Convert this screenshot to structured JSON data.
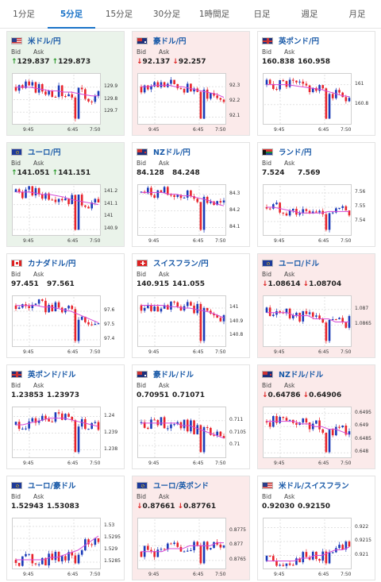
{
  "tabs": [
    {
      "label": "1分足",
      "active": false
    },
    {
      "label": "5分足",
      "active": true
    },
    {
      "label": "15分足",
      "active": false
    },
    {
      "label": "30分足",
      "active": false
    },
    {
      "label": "1時間足",
      "active": false
    },
    {
      "label": "日足",
      "active": false
    },
    {
      "label": "週足",
      "active": false
    },
    {
      "label": "月足",
      "active": false
    }
  ],
  "labels": {
    "bid": "Bid",
    "ask": "Ask"
  },
  "arrows": {
    "up": "↑",
    "down": "↓"
  },
  "colors": {
    "up_bg": "#eaf3ea",
    "down_bg": "#fbeaea",
    "up_arrow": "#2a9a2a",
    "down_arrow": "#d22222",
    "candle_up": "#1a3ab8",
    "candle_down": "#e8232b",
    "ma_line": "#d64ad6",
    "name": "#1a5aa8"
  },
  "pairs": [
    {
      "name": "米ドル/円",
      "trend": "up",
      "bid": "129.837",
      "ask": "129.873",
      "icon": "us-flag-icon",
      "yticks": [
        "129.9",
        "129.8",
        "129.7"
      ],
      "xticks": [
        "9:45",
        "6:45",
        "7:50"
      ],
      "chart_data": {
        "type": "candlestick",
        "ylim": [
          129.6,
          130.0
        ],
        "y_values": [
          129.9,
          129.8,
          129.7
        ],
        "ma": [
          129.9,
          129.9,
          129.9,
          129.89,
          129.88,
          129.87,
          129.87,
          129.86,
          129.86,
          129.85,
          129.84,
          129.83,
          129.83
        ]
      }
    },
    {
      "name": "豪ドル/円",
      "trend": "down",
      "bid": "92.137",
      "ask": "92.257",
      "icon": "au-flag-icon",
      "yticks": [
        "92.3",
        "92.2",
        "92.1"
      ],
      "xticks": [
        "9:45",
        "6:45",
        "7:50"
      ],
      "chart_data": {
        "type": "candlestick",
        "ylim": [
          92.05,
          92.38
        ],
        "y_values": [
          92.3,
          92.2,
          92.1
        ],
        "ma": [
          92.3,
          92.3,
          92.31,
          92.31,
          92.31,
          92.3,
          92.3,
          92.29,
          92.28,
          92.27,
          92.26,
          92.25,
          92.23
        ]
      }
    },
    {
      "name": "英ポンド/円",
      "trend": "none",
      "bid": "160.838",
      "ask": "160.958",
      "icon": "uk-flag-icon",
      "yticks": [
        "161",
        "160.8"
      ],
      "xticks": [
        "9:45",
        "6:45",
        "7:50"
      ],
      "chart_data": {
        "type": "candlestick",
        "ylim": [
          160.6,
          161.1
        ],
        "y_values": [
          161.0,
          160.8
        ],
        "ma": [
          161.0,
          161.0,
          161.0,
          161.0,
          160.99,
          160.98,
          160.97,
          160.96,
          160.95,
          160.93,
          160.91,
          160.89,
          160.88
        ]
      }
    },
    {
      "name": "ユーロ/円",
      "trend": "up",
      "bid": "141.051",
      "ask": "141.151",
      "icon": "eu-flag-icon",
      "yticks": [
        "141.2",
        "141.1",
        "141",
        "140.9"
      ],
      "xticks": [
        "9:45",
        "6:45",
        "7:50"
      ],
      "chart_data": {
        "type": "candlestick",
        "ylim": [
          140.85,
          141.25
        ],
        "y_values": [
          141.2,
          141.1,
          141.0,
          140.9
        ],
        "ma": [
          141.2,
          141.2,
          141.2,
          141.19,
          141.18,
          141.18,
          141.17,
          141.16,
          141.14,
          141.13,
          141.12,
          141.11,
          141.1
        ]
      }
    },
    {
      "name": "NZドル/円",
      "trend": "none",
      "bid": "84.128",
      "ask": "84.248",
      "icon": "nz-flag-icon",
      "yticks": [
        "84.3",
        "84.2",
        "84.1"
      ],
      "xticks": [
        "9:45",
        "6:45",
        "7:50"
      ],
      "chart_data": {
        "type": "candlestick",
        "ylim": [
          84.05,
          84.35
        ],
        "y_values": [
          84.3,
          84.2,
          84.1
        ],
        "ma": [
          84.31,
          84.31,
          84.31,
          84.31,
          84.3,
          84.3,
          84.29,
          84.29,
          84.28,
          84.27,
          84.26,
          84.24,
          84.23
        ]
      }
    },
    {
      "name": "ランド/円",
      "trend": "none",
      "bid": "7.524",
      "ask": "7.569",
      "icon": "za-flag-icon",
      "yticks": [
        "7.56",
        "7.55",
        "7.54"
      ],
      "xticks": [
        "9:45",
        "6:45",
        "7:50"
      ],
      "chart_data": {
        "type": "candlestick",
        "ylim": [
          7.53,
          7.565
        ],
        "y_values": [
          7.56,
          7.55,
          7.54
        ],
        "ma": [
          7.55,
          7.55,
          7.549,
          7.548,
          7.547,
          7.546,
          7.546,
          7.546,
          7.546,
          7.547,
          7.547,
          7.547,
          7.547
        ]
      }
    },
    {
      "name": "カナダドル/円",
      "trend": "none",
      "bid": "97.451",
      "ask": "97.561",
      "icon": "ca-flag-icon",
      "yticks": [
        "97.6",
        "97.5",
        "97.4"
      ],
      "xticks": [
        "9:45",
        "6:45",
        "7:50"
      ],
      "chart_data": {
        "type": "candlestick",
        "ylim": [
          97.35,
          97.7
        ],
        "y_values": [
          97.6,
          97.5,
          97.4
        ],
        "ma": [
          97.64,
          97.64,
          97.64,
          97.64,
          97.63,
          97.63,
          97.62,
          97.61,
          97.6,
          97.58,
          97.56,
          97.54,
          97.52
        ]
      }
    },
    {
      "name": "スイスフラン/円",
      "trend": "none",
      "bid": "140.915",
      "ask": "141.055",
      "icon": "ch-flag-icon",
      "yticks": [
        "141",
        "140.9",
        "140.8"
      ],
      "xticks": [
        "9:45",
        "6:45",
        "7:50"
      ],
      "chart_data": {
        "type": "candlestick",
        "ylim": [
          140.72,
          141.08
        ],
        "y_values": [
          141.0,
          140.9,
          140.8
        ],
        "ma": [
          141.02,
          141.02,
          141.02,
          141.02,
          141.01,
          141.01,
          141.0,
          141.0,
          140.99,
          140.98,
          140.97,
          140.95,
          140.93
        ]
      }
    },
    {
      "name": "ユーロ/ドル",
      "trend": "down",
      "bid": "1.08614",
      "ask": "1.08704",
      "icon": "eu-flag-icon",
      "yticks": [
        "1.087",
        "1.0865"
      ],
      "xticks": [
        "9:45",
        "6:45",
        "7:50"
      ],
      "chart_data": {
        "type": "candlestick",
        "ylim": [
          1.0858,
          1.0874
        ],
        "y_values": [
          1.087,
          1.0865
        ],
        "ma": [
          1.0869,
          1.0869,
          1.0869,
          1.0869,
          1.0868,
          1.0868,
          1.0868,
          1.0867,
          1.0867,
          1.0867,
          1.0866,
          1.0866,
          1.0866
        ]
      }
    },
    {
      "name": "英ポンド/ドル",
      "trend": "none",
      "bid": "1.23853",
      "ask": "1.23973",
      "icon": "uk-flag-icon",
      "yticks": [
        "1.24",
        "1.239",
        "1.238"
      ],
      "xticks": [
        "9:45",
        "6:45",
        "7:50"
      ],
      "chart_data": {
        "type": "candlestick",
        "ylim": [
          1.2375,
          1.2405
        ],
        "y_values": [
          1.24,
          1.239,
          1.238
        ],
        "ma": [
          1.2395,
          1.2395,
          1.2396,
          1.2397,
          1.2398,
          1.2399,
          1.2399,
          1.2399,
          1.2398,
          1.2397,
          1.2396,
          1.2395,
          1.2394
        ]
      }
    },
    {
      "name": "豪ドル/ドル",
      "trend": "none",
      "bid": "0.70951",
      "ask": "0.71071",
      "icon": "au-flag-icon",
      "yticks": [
        "0.711",
        "0.7105",
        "0.71"
      ],
      "xticks": [
        "9:45",
        "6:45",
        "7:50"
      ],
      "chart_data": {
        "type": "candlestick",
        "ylim": [
          0.7095,
          0.7115
        ],
        "y_values": [
          0.711,
          0.7105,
          0.71
        ],
        "ma": [
          0.7109,
          0.7109,
          0.7109,
          0.7109,
          0.7109,
          0.7109,
          0.7108,
          0.7108,
          0.7107,
          0.7106,
          0.7105,
          0.7104,
          0.7103
        ]
      }
    },
    {
      "name": "NZドル/ドル",
      "trend": "down",
      "bid": "0.64786",
      "ask": "0.64906",
      "icon": "nz-flag-icon",
      "yticks": [
        "0.6495",
        "0.649",
        "0.6485",
        "0.648"
      ],
      "xticks": [
        "9:45",
        "6:45",
        "7:50"
      ],
      "chart_data": {
        "type": "candlestick",
        "ylim": [
          0.6478,
          0.6497
        ],
        "y_values": [
          0.6495,
          0.649,
          0.6485,
          0.648
        ],
        "ma": [
          0.6492,
          0.6492,
          0.6492,
          0.6492,
          0.6492,
          0.6491,
          0.6491,
          0.649,
          0.649,
          0.6489,
          0.6489,
          0.6488,
          0.6487
        ]
      }
    },
    {
      "name": "ユーロ/豪ドル",
      "trend": "none",
      "bid": "1.52943",
      "ask": "1.53083",
      "icon": "eu-flag-icon",
      "yticks": [
        "1.53",
        "1.5295",
        "1.529",
        "1.5285"
      ],
      "xticks": [
        "9:45",
        "6:45",
        "7:50"
      ],
      "chart_data": {
        "type": "candlestick",
        "ylim": [
          1.5282,
          1.5303
        ],
        "y_values": [
          1.53,
          1.5295,
          1.529,
          1.5285
        ],
        "ma": [
          1.5286,
          1.5286,
          1.5286,
          1.5286,
          1.5286,
          1.5287,
          1.5287,
          1.5288,
          1.5289,
          1.529,
          1.5292,
          1.5294,
          1.5296
        ]
      }
    },
    {
      "name": "ユーロ/英ポンド",
      "trend": "down",
      "bid": "0.87661",
      "ask": "0.87761",
      "icon": "eu-flag-icon",
      "yticks": [
        "0.8775",
        "0.877",
        "0.8765"
      ],
      "xticks": [
        "9:45",
        "6:45",
        "7:50"
      ],
      "chart_data": {
        "type": "candlestick",
        "ylim": [
          0.8762,
          0.8779
        ],
        "y_values": [
          0.8775,
          0.877,
          0.8765
        ],
        "ma": [
          0.8768,
          0.8768,
          0.8768,
          0.8768,
          0.8769,
          0.8769,
          0.8769,
          0.877,
          0.877,
          0.877,
          0.877,
          0.8771,
          0.8771
        ]
      }
    },
    {
      "name": "米ドル/スイスフラン",
      "trend": "none",
      "bid": "0.92030",
      "ask": "0.92150",
      "icon": "us-flag-icon",
      "yticks": [
        "0.922",
        "0.9215",
        "0.921"
      ],
      "xticks": [
        "9:45",
        "6:45",
        "7:50"
      ],
      "chart_data": {
        "type": "candlestick",
        "ylim": [
          0.9205,
          0.9223
        ],
        "y_values": [
          0.922,
          0.9215,
          0.921
        ],
        "ma": [
          0.9208,
          0.9208,
          0.9208,
          0.9208,
          0.9208,
          0.9209,
          0.9209,
          0.921,
          0.921,
          0.9211,
          0.9212,
          0.9212,
          0.9213
        ]
      }
    }
  ]
}
